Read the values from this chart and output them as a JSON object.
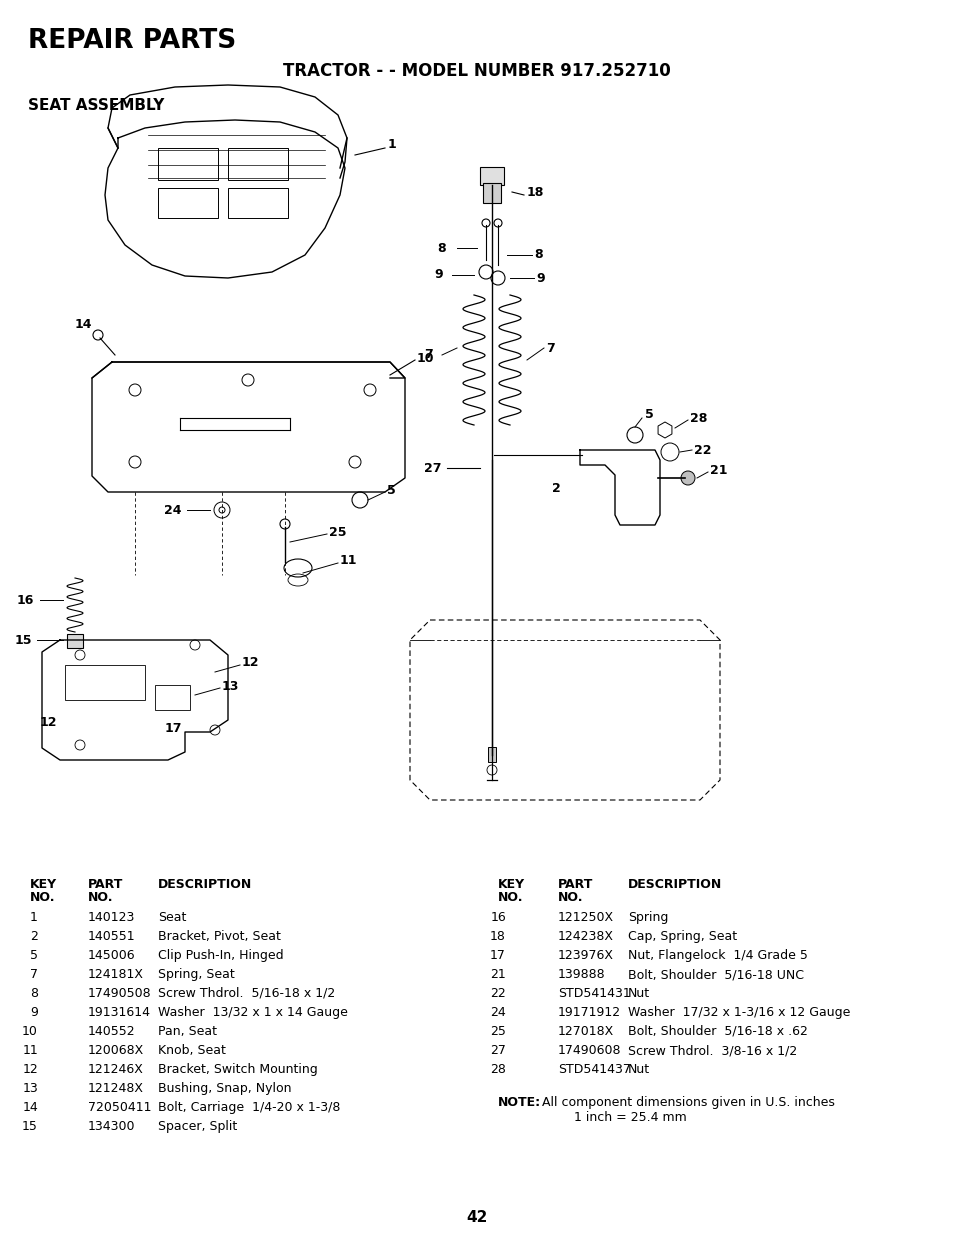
{
  "title": "REPAIR PARTS",
  "subtitle": "TRACTOR - - MODEL NUMBER 917.252710",
  "section": "SEAT ASSEMBLY",
  "page_number": "42",
  "bg_color": "#ffffff",
  "left_table": {
    "rows": [
      [
        "1",
        "140123",
        "Seat"
      ],
      [
        "2",
        "140551",
        "Bracket, Pivot, Seat"
      ],
      [
        "5",
        "145006",
        "Clip Push-In, Hinged"
      ],
      [
        "7",
        "124181X",
        "Spring, Seat"
      ],
      [
        "8",
        "17490508",
        "Screw Thdrol.  5/16-18 x 1/2"
      ],
      [
        "9",
        "19131614",
        "Washer  13/32 x 1 x 14 Gauge"
      ],
      [
        "10",
        "140552",
        "Pan, Seat"
      ],
      [
        "11",
        "120068X",
        "Knob, Seat"
      ],
      [
        "12",
        "121246X",
        "Bracket, Switch Mounting"
      ],
      [
        "13",
        "121248X",
        "Bushing, Snap, Nylon"
      ],
      [
        "14",
        "72050411",
        "Bolt, Carriage  1/4-20 x 1-3/8"
      ],
      [
        "15",
        "134300",
        "Spacer, Split"
      ]
    ]
  },
  "right_table": {
    "rows": [
      [
        "16",
        "121250X",
        "Spring"
      ],
      [
        "18",
        "124238X",
        "Cap, Spring, Seat"
      ],
      [
        "17",
        "123976X",
        "Nut, Flangelock  1/4 Grade 5"
      ],
      [
        "21",
        "139888",
        "Bolt, Shoulder  5/16-18 UNC"
      ],
      [
        "22",
        "STD541431",
        "Nut"
      ],
      [
        "24",
        "19171912",
        "Washer  17/32 x 1-3/16 x 12 Gauge"
      ],
      [
        "25",
        "127018X",
        "Bolt, Shoulder  5/16-18 x .62"
      ],
      [
        "27",
        "17490608",
        "Screw Thdrol.  3/8-16 x 1/2"
      ],
      [
        "28",
        "STD541437",
        "Nut"
      ]
    ]
  },
  "note_bold": "NOTE:",
  "note_rest": "  All component dimensions given in U.S. inches\n          1 inch = 25.4 mm"
}
